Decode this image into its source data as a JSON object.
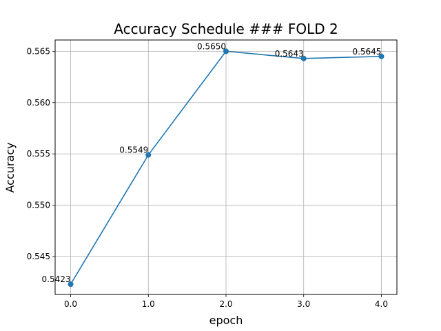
{
  "chart_data": {
    "type": "line",
    "title": "Accuracy Schedule ### FOLD 2",
    "xlabel": "epoch",
    "ylabel": "Accuracy",
    "x": [
      0,
      1,
      2,
      3,
      4
    ],
    "x_tick_labels": [
      "0.0",
      "1.0",
      "2.0",
      "3.0",
      "4.0"
    ],
    "y_ticks": [
      0.545,
      0.55,
      0.555,
      0.56,
      0.565
    ],
    "y_tick_labels": [
      "0.545",
      "0.550",
      "0.555",
      "0.560",
      "0.565"
    ],
    "xlim": [
      -0.2,
      4.2
    ],
    "ylim": [
      0.5413,
      0.5661
    ],
    "grid": true,
    "series": [
      {
        "values": [
          0.5423,
          0.5549,
          0.565,
          0.5643,
          0.5645
        ],
        "labels": [
          "0.5423",
          "0.5549",
          "0.5650",
          "0.5643",
          "0.5645"
        ],
        "color": "#1f77b4",
        "marker": "circle"
      }
    ]
  }
}
